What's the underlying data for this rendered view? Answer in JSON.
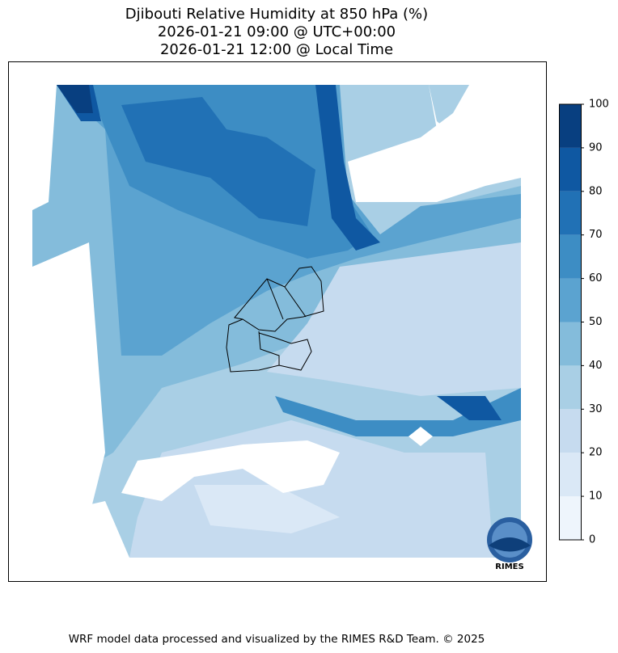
{
  "title": [
    "Djibouti Relative Humidity at 850 hPa (%)",
    "2026-01-21 09:00 @ UTC+00:00",
    "2026-01-21 12:00 @ Local Time"
  ],
  "colorbar": {
    "ticks": [
      0,
      10,
      20,
      30,
      40,
      50,
      60,
      70,
      80,
      90,
      100
    ],
    "colors": [
      "#eef5fc",
      "#dae8f6",
      "#c6dbef",
      "#a9cfe5",
      "#84bcdb",
      "#5ba3d0",
      "#3d8dc4",
      "#2171b5",
      "#0f58a2",
      "#083f80"
    ]
  },
  "logo": "RIMES",
  "footer": "WRF model data processed and visualized by the RIMES R&D Team. © 2025"
}
